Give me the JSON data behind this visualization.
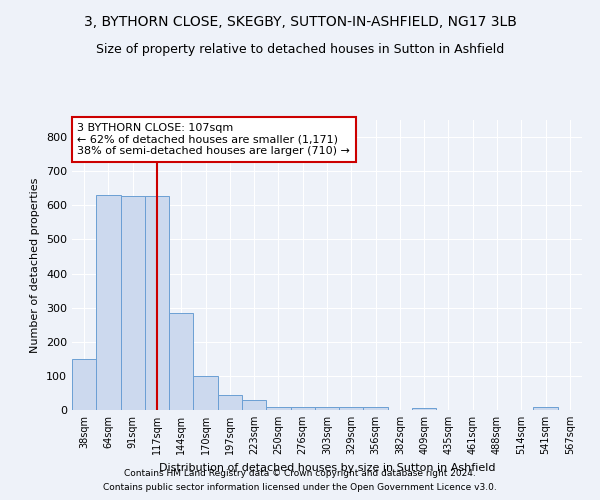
{
  "title": "3, BYTHORN CLOSE, SKEGBY, SUTTON-IN-ASHFIELD, NG17 3LB",
  "subtitle": "Size of property relative to detached houses in Sutton in Ashfield",
  "xlabel": "Distribution of detached houses by size in Sutton in Ashfield",
  "ylabel": "Number of detached properties",
  "categories": [
    "38sqm",
    "64sqm",
    "91sqm",
    "117sqm",
    "144sqm",
    "170sqm",
    "197sqm",
    "223sqm",
    "250sqm",
    "276sqm",
    "303sqm",
    "329sqm",
    "356sqm",
    "382sqm",
    "409sqm",
    "435sqm",
    "461sqm",
    "488sqm",
    "514sqm",
    "541sqm",
    "567sqm"
  ],
  "values": [
    150,
    630,
    628,
    628,
    285,
    100,
    44,
    30,
    8,
    8,
    8,
    8,
    8,
    0,
    5,
    0,
    0,
    0,
    0,
    8,
    0
  ],
  "bar_color": "#ccd9ee",
  "bar_edge_color": "#6b9fd4",
  "highlight_index": 3,
  "highlight_line_color": "#cc0000",
  "annotation_text": "3 BYTHORN CLOSE: 107sqm\n← 62% of detached houses are smaller (1,171)\n38% of semi-detached houses are larger (710) →",
  "annotation_box_color": "white",
  "annotation_box_edge": "#cc0000",
  "ylim": [
    0,
    850
  ],
  "yticks": [
    0,
    100,
    200,
    300,
    400,
    500,
    600,
    700,
    800
  ],
  "title_fontsize": 10,
  "subtitle_fontsize": 9,
  "footer_line1": "Contains HM Land Registry data © Crown copyright and database right 2024.",
  "footer_line2": "Contains public sector information licensed under the Open Government Licence v3.0.",
  "background_color": "#eef2f9",
  "grid_color": "white"
}
